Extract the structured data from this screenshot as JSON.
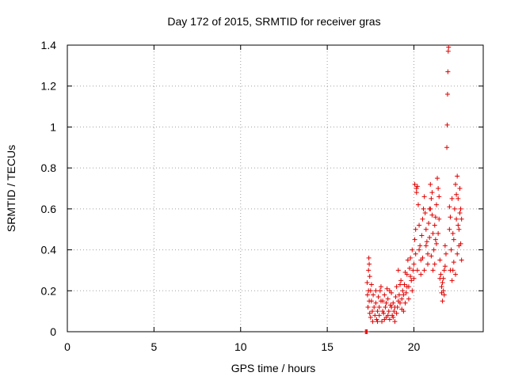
{
  "chart_data": {
    "type": "scatter",
    "title": "Day 172 of 2015, SRMTID for receiver gras",
    "xlabel": "GPS time / hours",
    "ylabel": "SRMTID / TECUs",
    "xlim": [
      0,
      24
    ],
    "ylim": [
      0,
      1.4
    ],
    "xticks": [
      0,
      5,
      10,
      15,
      20
    ],
    "xtick_labels": [
      "0",
      "5",
      "10",
      "15",
      "20"
    ],
    "yticks": [
      0,
      0.2,
      0.4,
      0.6,
      0.8,
      1.0,
      1.2,
      1.4
    ],
    "ytick_labels": [
      "0",
      "0.2",
      "0.4",
      "0.6",
      "0.8",
      "1",
      "1.2",
      "1.4"
    ],
    "grid": true,
    "marker": "+",
    "color": "#e00000",
    "series": [
      {
        "name": "gras",
        "points": [
          [
            17.2,
            0.0
          ],
          [
            17.25,
            0.0
          ],
          [
            17.3,
            0.0
          ],
          [
            17.3,
            0.24
          ],
          [
            17.32,
            0.18
          ],
          [
            17.35,
            0.12
          ],
          [
            17.38,
            0.3
          ],
          [
            17.4,
            0.36
          ],
          [
            17.42,
            0.33
          ],
          [
            17.45,
            0.27
          ],
          [
            17.45,
            0.09
          ],
          [
            17.5,
            0.2
          ],
          [
            17.5,
            0.07
          ],
          [
            17.55,
            0.15
          ],
          [
            17.6,
            0.1
          ],
          [
            17.62,
            0.05
          ],
          [
            17.7,
            0.12
          ],
          [
            17.75,
            0.08
          ],
          [
            17.8,
            0.14
          ],
          [
            17.85,
            0.06
          ],
          [
            17.9,
            0.1
          ],
          [
            17.95,
            0.17
          ],
          [
            18.0,
            0.12
          ],
          [
            18.05,
            0.2
          ],
          [
            18.1,
            0.22
          ],
          [
            18.15,
            0.05
          ],
          [
            18.2,
            0.15
          ],
          [
            18.25,
            0.09
          ],
          [
            18.3,
            0.18
          ],
          [
            18.35,
            0.12
          ],
          [
            18.4,
            0.07
          ],
          [
            18.45,
            0.21
          ],
          [
            18.5,
            0.16
          ],
          [
            18.55,
            0.1
          ],
          [
            18.6,
            0.06
          ],
          [
            18.65,
            0.13
          ],
          [
            18.7,
            0.19
          ],
          [
            18.75,
            0.08
          ],
          [
            18.8,
            0.14
          ],
          [
            18.85,
            0.1
          ],
          [
            18.9,
            0.05
          ],
          [
            18.95,
            0.17
          ],
          [
            19.0,
            0.22
          ],
          [
            19.05,
            0.12
          ],
          [
            19.1,
            0.3
          ],
          [
            19.15,
            0.18
          ],
          [
            19.2,
            0.14
          ],
          [
            19.25,
            0.25
          ],
          [
            19.3,
            0.16
          ],
          [
            19.35,
            0.2
          ],
          [
            19.4,
            0.1
          ],
          [
            19.45,
            0.23
          ],
          [
            19.5,
            0.29
          ],
          [
            19.55,
            0.19
          ],
          [
            19.6,
            0.28
          ],
          [
            19.65,
            0.35
          ],
          [
            19.7,
            0.22
          ],
          [
            19.75,
            0.31
          ],
          [
            19.8,
            0.36
          ],
          [
            19.85,
            0.25
          ],
          [
            19.9,
            0.4
          ],
          [
            19.95,
            0.3
          ],
          [
            20.0,
            0.33
          ],
          [
            20.05,
            0.45
          ],
          [
            20.1,
            0.5
          ],
          [
            20.15,
            0.7
          ],
          [
            20.2,
            0.71
          ],
          [
            20.25,
            0.62
          ],
          [
            20.3,
            0.52
          ],
          [
            20.35,
            0.42
          ],
          [
            20.4,
            0.35
          ],
          [
            20.45,
            0.47
          ],
          [
            20.5,
            0.55
          ],
          [
            20.55,
            0.6
          ],
          [
            20.6,
            0.66
          ],
          [
            20.65,
            0.58
          ],
          [
            20.7,
            0.5
          ],
          [
            20.75,
            0.44
          ],
          [
            20.8,
            0.38
          ],
          [
            20.85,
            0.53
          ],
          [
            20.9,
            0.6
          ],
          [
            20.95,
            0.72
          ],
          [
            21.0,
            0.65
          ],
          [
            21.05,
            0.57
          ],
          [
            21.1,
            0.48
          ],
          [
            21.15,
            0.4
          ],
          [
            21.2,
            0.33
          ],
          [
            21.25,
            0.45
          ],
          [
            21.3,
            0.62
          ],
          [
            21.35,
            0.75
          ],
          [
            21.4,
            0.7
          ],
          [
            21.45,
            0.55
          ],
          [
            21.5,
            0.35
          ],
          [
            21.55,
            0.28
          ],
          [
            21.6,
            0.22
          ],
          [
            21.65,
            0.15
          ],
          [
            21.7,
            0.2
          ],
          [
            21.75,
            0.3
          ],
          [
            21.8,
            0.42
          ],
          [
            21.85,
            0.38
          ],
          [
            21.9,
            0.9
          ],
          [
            21.92,
            1.01
          ],
          [
            21.94,
            1.16
          ],
          [
            21.96,
            1.27
          ],
          [
            21.98,
            1.37
          ],
          [
            22.0,
            1.39
          ],
          [
            22.05,
            0.5
          ],
          [
            22.1,
            0.56
          ],
          [
            22.15,
            0.4
          ],
          [
            22.2,
            0.65
          ],
          [
            22.25,
            0.3
          ],
          [
            22.3,
            0.45
          ],
          [
            22.35,
            0.6
          ],
          [
            22.4,
            0.72
          ],
          [
            22.45,
            0.55
          ],
          [
            22.5,
            0.76
          ],
          [
            22.55,
            0.65
          ],
          [
            22.6,
            0.5
          ],
          [
            22.65,
            0.7
          ],
          [
            22.7,
            0.43
          ],
          [
            22.75,
            0.35
          ],
          [
            17.38,
            0.2
          ],
          [
            17.42,
            0.15
          ],
          [
            17.55,
            0.23
          ],
          [
            17.65,
            0.18
          ],
          [
            17.8,
            0.2
          ],
          [
            17.9,
            0.05
          ],
          [
            18.0,
            0.08
          ],
          [
            18.1,
            0.15
          ],
          [
            18.2,
            0.1
          ],
          [
            18.3,
            0.06
          ],
          [
            18.4,
            0.14
          ],
          [
            18.5,
            0.08
          ],
          [
            18.6,
            0.2
          ],
          [
            18.7,
            0.12
          ],
          [
            18.8,
            0.07
          ],
          [
            18.9,
            0.12
          ],
          [
            19.0,
            0.09
          ],
          [
            19.1,
            0.15
          ],
          [
            19.2,
            0.23
          ],
          [
            19.3,
            0.11
          ],
          [
            19.4,
            0.18
          ],
          [
            19.5,
            0.14
          ],
          [
            19.6,
            0.22
          ],
          [
            19.7,
            0.16
          ],
          [
            19.8,
            0.27
          ],
          [
            19.9,
            0.2
          ],
          [
            20.0,
            0.26
          ],
          [
            20.1,
            0.38
          ],
          [
            20.2,
            0.3
          ],
          [
            20.3,
            0.4
          ],
          [
            20.4,
            0.28
          ],
          [
            20.5,
            0.36
          ],
          [
            20.6,
            0.3
          ],
          [
            20.7,
            0.42
          ],
          [
            20.8,
            0.33
          ],
          [
            20.9,
            0.46
          ],
          [
            21.0,
            0.37
          ],
          [
            21.1,
            0.3
          ],
          [
            21.2,
            0.52
          ],
          [
            21.3,
            0.43
          ],
          [
            21.4,
            0.48
          ],
          [
            21.5,
            0.26
          ],
          [
            21.6,
            0.19
          ],
          [
            21.7,
            0.26
          ],
          [
            21.8,
            0.32
          ],
          [
            22.1,
            0.3
          ],
          [
            22.2,
            0.25
          ],
          [
            22.3,
            0.34
          ],
          [
            22.4,
            0.28
          ],
          [
            22.5,
            0.38
          ],
          [
            22.6,
            0.42
          ],
          [
            22.7,
            0.6
          ],
          [
            22.75,
            0.55
          ],
          [
            20.05,
            0.72
          ],
          [
            20.15,
            0.68
          ],
          [
            20.95,
            0.6
          ],
          [
            21.05,
            0.68
          ],
          [
            21.25,
            0.56
          ],
          [
            21.45,
            0.66
          ],
          [
            21.65,
            0.24
          ],
          [
            21.75,
            0.18
          ],
          [
            22.05,
            0.61
          ],
          [
            22.25,
            0.48
          ],
          [
            22.45,
            0.67
          ],
          [
            22.55,
            0.52
          ],
          [
            22.65,
            0.58
          ]
        ]
      }
    ]
  }
}
